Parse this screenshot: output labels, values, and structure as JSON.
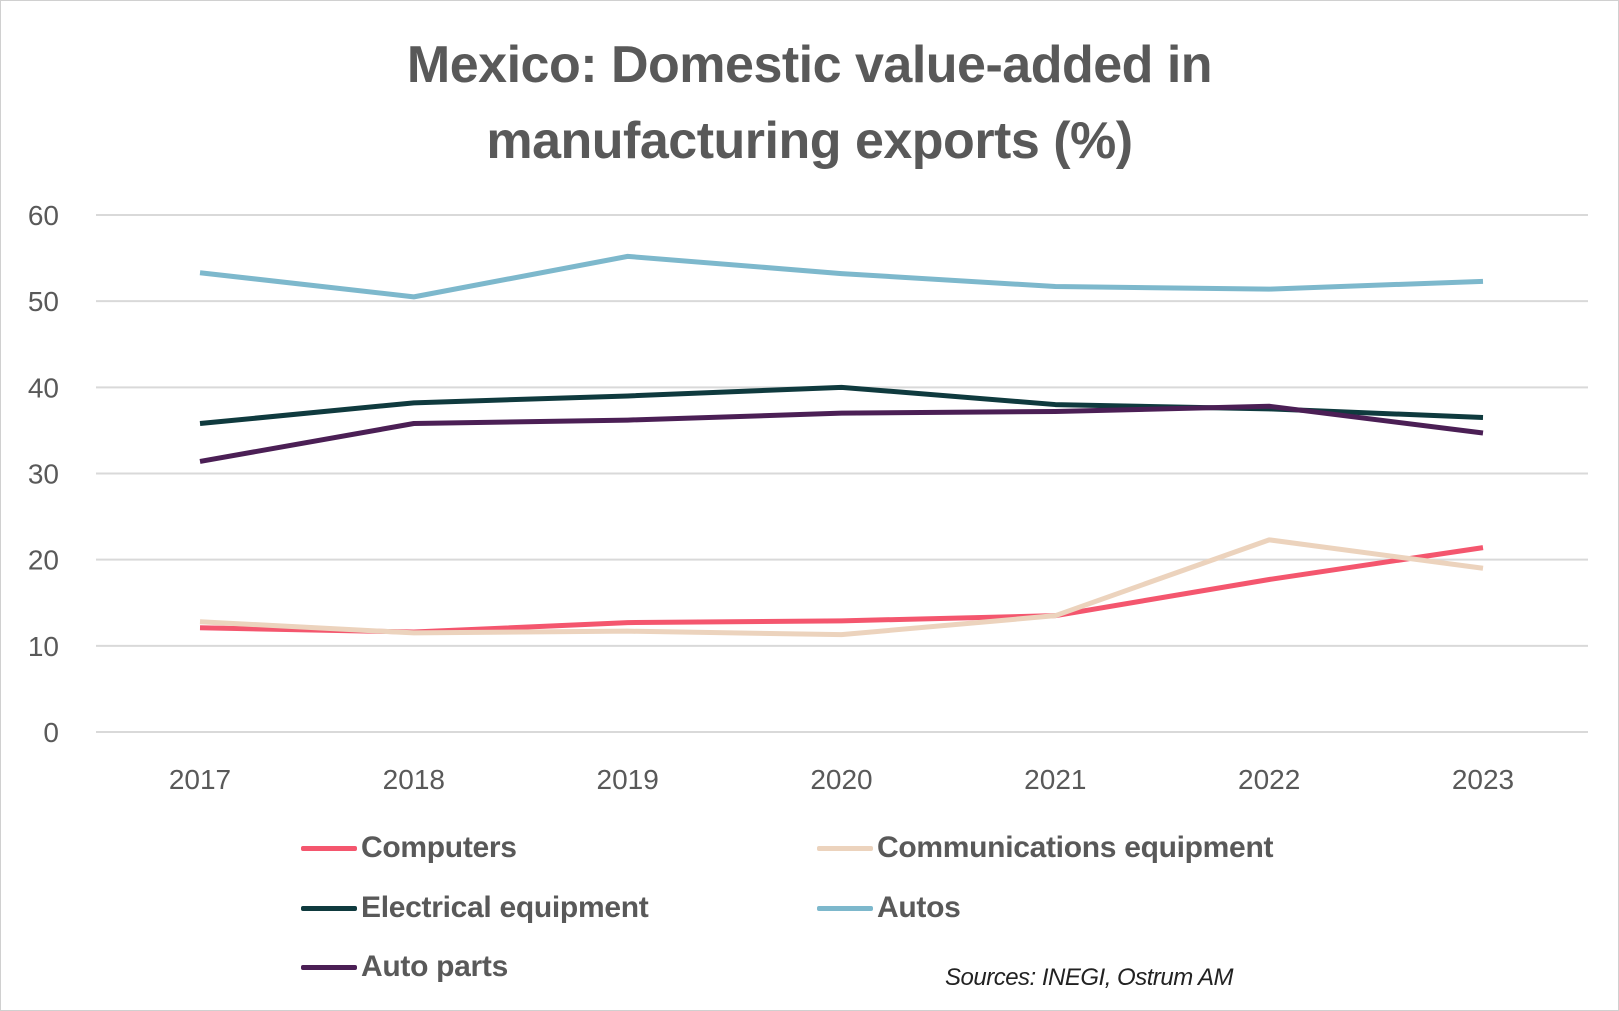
{
  "chart_data": {
    "type": "line",
    "title": "Mexico: Domestic value-added in manufacturing exports (%)",
    "title_lines": [
      "Mexico: Domestic value-added in",
      "manufacturing exports (%)"
    ],
    "categories": [
      "2017",
      "2018",
      "2019",
      "2020",
      "2021",
      "2022",
      "2023"
    ],
    "ylim": [
      0,
      60
    ],
    "yticks": [
      "0",
      "10",
      "20",
      "30",
      "40",
      "50",
      "60"
    ],
    "grid": true,
    "legend_placement": "bottom",
    "series": [
      {
        "name": "Computers",
        "color": "#f4566e",
        "values": [
          12.1,
          11.6,
          12.7,
          12.9,
          13.5,
          17.7,
          21.4
        ]
      },
      {
        "name": "Communications equipment",
        "color": "#ecd3bd",
        "values": [
          12.8,
          11.5,
          11.7,
          11.3,
          13.5,
          22.3,
          19.0
        ]
      },
      {
        "name": "Electrical equipment",
        "color": "#0f3a3e",
        "values": [
          35.8,
          38.2,
          39.0,
          40.0,
          38.0,
          37.5,
          36.5
        ]
      },
      {
        "name": "Autos",
        "color": "#7db8cc",
        "values": [
          53.3,
          50.5,
          55.2,
          53.2,
          51.7,
          51.4,
          52.3
        ]
      },
      {
        "name": "Auto parts",
        "color": "#4b1f55",
        "values": [
          31.4,
          35.8,
          36.2,
          37.0,
          37.2,
          37.8,
          34.7
        ]
      }
    ],
    "source": "Sources: INEGI, Ostrum AM"
  }
}
